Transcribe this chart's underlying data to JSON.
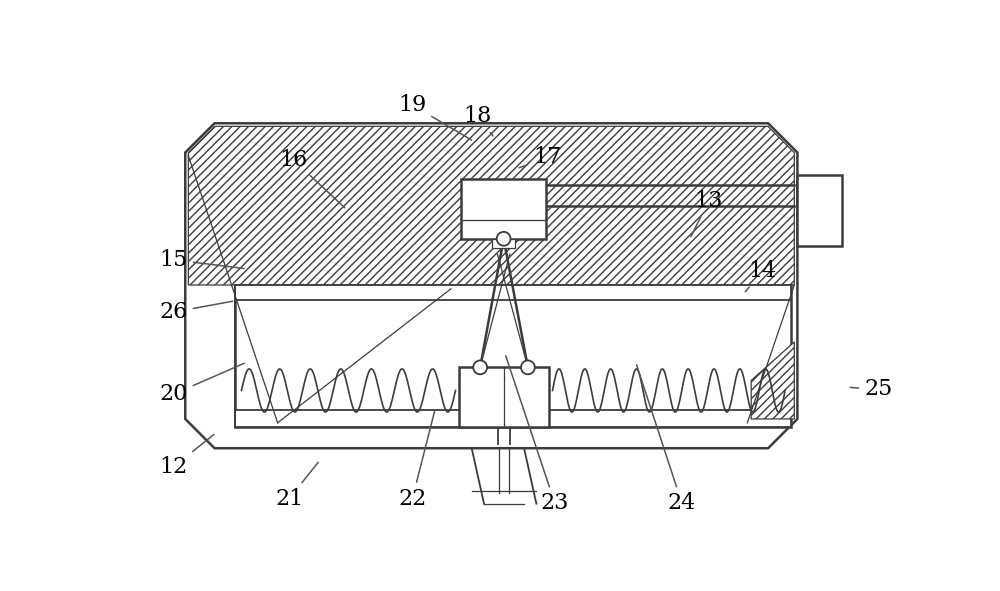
{
  "bg_color": "#ffffff",
  "lc": "#3c3c3c",
  "figsize": [
    10.0,
    5.91
  ],
  "dpi": 100,
  "labels": {
    "12": {
      "lpos": [
        0.06,
        0.87
      ],
      "tpos": [
        0.115,
        0.795
      ]
    },
    "21": {
      "lpos": [
        0.21,
        0.94
      ],
      "tpos": [
        0.25,
        0.855
      ]
    },
    "22": {
      "lpos": [
        0.37,
        0.94
      ],
      "tpos": [
        0.4,
        0.74
      ]
    },
    "23": {
      "lpos": [
        0.555,
        0.95
      ],
      "tpos": [
        0.49,
        0.62
      ]
    },
    "24": {
      "lpos": [
        0.72,
        0.95
      ],
      "tpos": [
        0.66,
        0.64
      ]
    },
    "20": {
      "lpos": [
        0.06,
        0.71
      ],
      "tpos": [
        0.155,
        0.64
      ]
    },
    "26": {
      "lpos": [
        0.06,
        0.53
      ],
      "tpos": [
        0.14,
        0.505
      ]
    },
    "15": {
      "lpos": [
        0.06,
        0.415
      ],
      "tpos": [
        0.155,
        0.435
      ]
    },
    "16": {
      "lpos": [
        0.215,
        0.195
      ],
      "tpos": [
        0.285,
        0.305
      ]
    },
    "19": {
      "lpos": [
        0.37,
        0.075
      ],
      "tpos": [
        0.45,
        0.155
      ]
    },
    "18": {
      "lpos": [
        0.455,
        0.1
      ],
      "tpos": [
        0.477,
        0.148
      ]
    },
    "17": {
      "lpos": [
        0.545,
        0.19
      ],
      "tpos": [
        0.505,
        0.215
      ]
    },
    "13": {
      "lpos": [
        0.755,
        0.285
      ],
      "tpos": [
        0.73,
        0.37
      ]
    },
    "14": {
      "lpos": [
        0.825,
        0.44
      ],
      "tpos": [
        0.8,
        0.49
      ]
    },
    "25": {
      "lpos": [
        0.975,
        0.7
      ],
      "tpos": [
        0.935,
        0.695
      ]
    }
  }
}
